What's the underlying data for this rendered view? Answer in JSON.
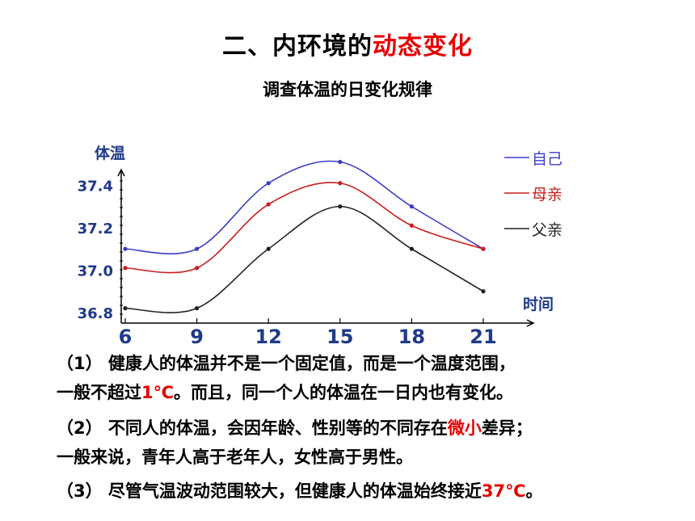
{
  "title": {
    "main": "二、内环境的",
    "highlight": "动态变化"
  },
  "subtitle": "调查体温的日变化规律",
  "chart_data": {
    "type": "line",
    "ylabel": "体温",
    "xlabel": "时间",
    "x": [
      6,
      9,
      12,
      15,
      18,
      21
    ],
    "x_ticks": [
      "6",
      "9",
      "12",
      "15",
      "18",
      "21"
    ],
    "y_ticks": [
      "36.8",
      "37.0",
      "37.2",
      "37.4"
    ],
    "ylim": [
      36.75,
      37.55
    ],
    "xlim": [
      6,
      21
    ],
    "legend_position": "right",
    "series": [
      {
        "name": "自己",
        "color": "#3c3cc8",
        "values": [
          37.1,
          37.1,
          37.41,
          37.51,
          37.3,
          37.1
        ]
      },
      {
        "name": "母亲",
        "color": "#c81e1e",
        "values": [
          37.01,
          37.01,
          37.31,
          37.41,
          37.21,
          37.1
        ]
      },
      {
        "name": "父亲",
        "color": "#222222",
        "values": [
          36.82,
          36.82,
          37.1,
          37.3,
          37.1,
          36.9
        ]
      }
    ]
  },
  "paragraphs": [
    {
      "line1": "（1）  健康人的体温并不是一个固定值，而是一个温度范围，",
      "line2_pre": "一般不超过",
      "line2_red": "1℃",
      "line2_post": "。而且，同一个人的体温在一日内也有变化。"
    },
    {
      "line1_pre": "（2）  不同人的体温，会因年龄、性别等的不同存在",
      "line1_red": "微小",
      "line1_post": "差异；",
      "line2": "一般来说，青年人高于老年人，女性高于男性。"
    },
    {
      "line1_pre": "（3）  尽管气温波动范围较大，但健康人的体温始终接近",
      "line1_red": "37℃",
      "line1_post": "。"
    }
  ]
}
